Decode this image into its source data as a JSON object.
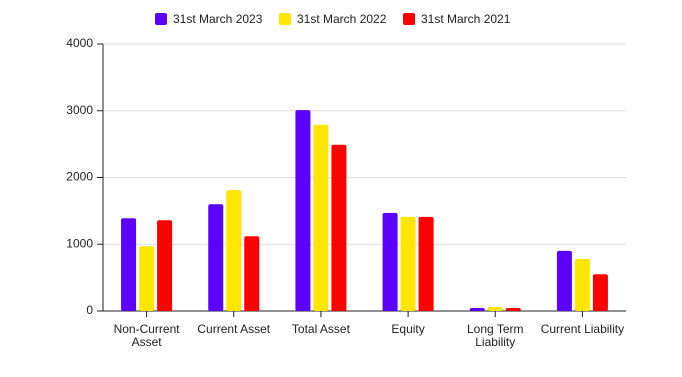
{
  "chart_data": {
    "type": "bar",
    "categories": [
      "Non-Current Asset",
      "Current Asset",
      "Total Asset",
      "Equity",
      "Long Term Liability",
      "Current Liability"
    ],
    "series": [
      {
        "name": "31st March 2023",
        "color": "#5c00ff",
        "values": [
          1390,
          1600,
          3010,
          1470,
          45,
          900
        ]
      },
      {
        "name": "31st March 2022",
        "color": "#ffe600",
        "values": [
          970,
          1810,
          2790,
          1410,
          60,
          780
        ]
      },
      {
        "name": "31st March 2021",
        "color": "#ff0000",
        "values": [
          1360,
          1120,
          2490,
          1410,
          45,
          550
        ]
      }
    ],
    "ylim": [
      0,
      4000
    ],
    "yticks": [
      0,
      1000,
      2000,
      3000,
      4000
    ],
    "grid": true,
    "legend": "top"
  }
}
